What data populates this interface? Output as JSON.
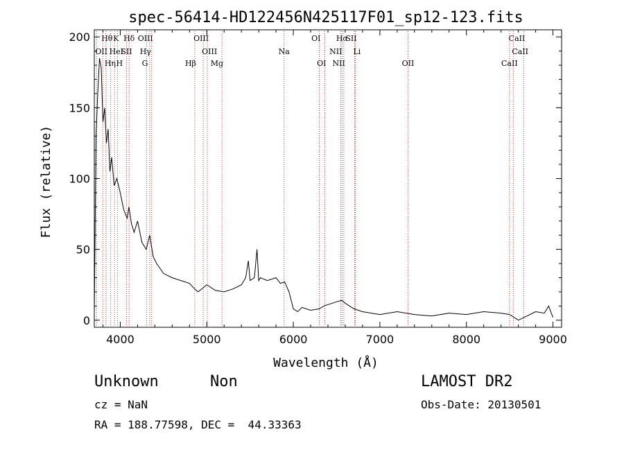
{
  "chart_data": {
    "type": "line",
    "title": "spec-56414-HD122456N425117F01_sp12-123.fits",
    "xlabel": "Wavelength (Å)",
    "ylabel": "Flux (relative)",
    "xlim": [
      3700,
      9100
    ],
    "ylim": [
      -5,
      205
    ],
    "x_ticks": [
      4000,
      5000,
      6000,
      7000,
      8000,
      9000
    ],
    "y_ticks": [
      0,
      50,
      100,
      150,
      200
    ],
    "grid": false,
    "line_color": "#000000",
    "marker_color": "#c0392b",
    "series": [
      {
        "x": [
          3700,
          3720,
          3740,
          3760,
          3780,
          3800,
          3820,
          3840,
          3860,
          3880,
          3900,
          3930,
          3960,
          4000,
          4040,
          4080,
          4100,
          4130,
          4160,
          4200,
          4250,
          4300,
          4340,
          4380,
          4420,
          4500,
          4600,
          4700,
          4800,
          4860,
          4900,
          5000,
          5100,
          5200,
          5300,
          5400,
          5450,
          5480,
          5500,
          5550,
          5580,
          5600,
          5620,
          5700,
          5800,
          5850,
          5900,
          5950,
          6000,
          6050,
          6100,
          6200,
          6300,
          6350,
          6400,
          6450,
          6500,
          6560,
          6600,
          6700,
          6800,
          6900,
          7000,
          7200,
          7400,
          7600,
          7800,
          8000,
          8200,
          8400,
          8500,
          8600,
          8700,
          8800,
          8900,
          8950,
          9000
        ],
        "y": [
          5,
          130,
          160,
          185,
          178,
          140,
          150,
          125,
          135,
          105,
          115,
          95,
          100,
          90,
          78,
          72,
          80,
          68,
          62,
          70,
          55,
          50,
          60,
          45,
          40,
          33,
          30,
          28,
          26,
          22,
          20,
          25,
          21,
          20,
          22,
          25,
          30,
          42,
          28,
          30,
          50,
          28,
          30,
          28,
          30,
          26,
          27,
          20,
          8,
          6,
          9,
          7,
          8,
          10,
          11,
          12,
          13,
          14,
          12,
          8,
          6,
          5,
          4,
          6,
          4,
          3,
          5,
          4,
          6,
          5,
          4,
          0,
          3,
          6,
          5,
          10,
          2
        ]
      }
    ],
    "lines": [
      {
        "name": "Hθ",
        "wl": 3798,
        "row": 0,
        "side": "r"
      },
      {
        "name": "OII",
        "wl": 3727,
        "row": 1,
        "side": "r"
      },
      {
        "name": "Hη",
        "wl": 3835,
        "row": 2,
        "side": "r"
      },
      {
        "name": "K",
        "wl": 3934,
        "row": 0,
        "side": "r"
      },
      {
        "name": "H",
        "wl": 3968,
        "row": 2,
        "side": "r"
      },
      {
        "name": "HeI",
        "wl": 3889,
        "row": 1,
        "side": "r"
      },
      {
        "name": "SII",
        "wl": 4072,
        "row": 1,
        "side": "c"
      },
      {
        "name": "Hδ",
        "wl": 4102,
        "row": 0,
        "side": "c"
      },
      {
        "name": "OIII",
        "wl": 4363,
        "row": 0,
        "side": "l"
      },
      {
        "name": "Hγ",
        "wl": 4340,
        "row": 1,
        "side": "l"
      },
      {
        "name": "G",
        "wl": 4304,
        "row": 2,
        "side": "l"
      },
      {
        "name": "Hβ",
        "wl": 4861,
        "row": 2,
        "side": "l"
      },
      {
        "name": "OIII",
        "wl": 5007,
        "row": 0,
        "side": "l"
      },
      {
        "name": "OIII",
        "wl": 4959,
        "row": 1,
        "side": "r"
      },
      {
        "name": "Mg",
        "wl": 5175,
        "row": 2,
        "side": "l"
      },
      {
        "name": "Na",
        "wl": 5893,
        "row": 1,
        "side": "c"
      },
      {
        "name": "OI",
        "wl": 6300,
        "row": 0,
        "side": "l"
      },
      {
        "name": "OI",
        "wl": 6364,
        "row": 2,
        "side": "l"
      },
      {
        "name": "Hα",
        "wl": 6563,
        "row": 0,
        "side": "c"
      },
      {
        "name": "NII",
        "wl": 6548,
        "row": 1,
        "side": "l"
      },
      {
        "name": "NII",
        "wl": 6583,
        "row": 2,
        "side": "l"
      },
      {
        "name": "SII",
        "wl": 6717,
        "row": 0,
        "side": "l"
      },
      {
        "name": "Li",
        "wl": 6708,
        "row": 1,
        "side": "r"
      },
      {
        "name": "OII",
        "wl": 7325,
        "row": 2,
        "side": "c"
      },
      {
        "name": "CaII",
        "wl": 8662,
        "row": 0,
        "side": "l"
      },
      {
        "name": "CaII",
        "wl": 8542,
        "row": 1,
        "side": "r"
      },
      {
        "name": "CaII",
        "wl": 8498,
        "row": 2,
        "side": "c"
      }
    ]
  },
  "info": {
    "class": "Unknown",
    "subclass": "Non",
    "cz": "cz = NaN",
    "coords": "RA = 188.77598, DEC =  44.33363",
    "survey": "LAMOST DR2",
    "obs_date": "Obs-Date: 20130501"
  }
}
